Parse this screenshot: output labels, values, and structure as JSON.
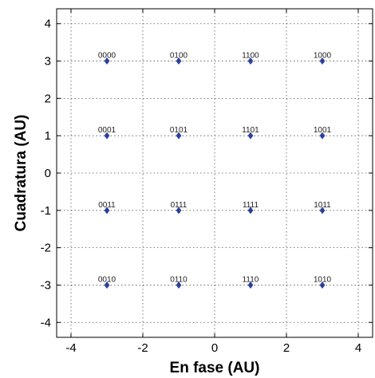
{
  "chart_data": {
    "type": "scatter",
    "xlabel": "En fase (AU)",
    "ylabel": "Cuadratura (AU)",
    "xlim": [
      -4.4,
      4.4
    ],
    "ylim": [
      -4.4,
      4.4
    ],
    "xticks": [
      -4,
      -2,
      0,
      2,
      4
    ],
    "yticks": [
      -4,
      -3,
      -2,
      -1,
      0,
      1,
      2,
      3,
      4
    ],
    "grid": true,
    "marker_color": "#2b3fa0",
    "points": [
      {
        "x": -3,
        "y": 3,
        "label": "0000"
      },
      {
        "x": -1,
        "y": 3,
        "label": "0100"
      },
      {
        "x": 1,
        "y": 3,
        "label": "1100"
      },
      {
        "x": 3,
        "y": 3,
        "label": "1000"
      },
      {
        "x": -3,
        "y": 1,
        "label": "0001"
      },
      {
        "x": -1,
        "y": 1,
        "label": "0101"
      },
      {
        "x": 1,
        "y": 1,
        "label": "1101"
      },
      {
        "x": 3,
        "y": 1,
        "label": "1001"
      },
      {
        "x": -3,
        "y": -1,
        "label": "0011"
      },
      {
        "x": -1,
        "y": -1,
        "label": "0111"
      },
      {
        "x": 1,
        "y": -1,
        "label": "1111"
      },
      {
        "x": 3,
        "y": -1,
        "label": "1011"
      },
      {
        "x": -3,
        "y": -3,
        "label": "0010"
      },
      {
        "x": -1,
        "y": -3,
        "label": "0110"
      },
      {
        "x": 1,
        "y": -3,
        "label": "1110"
      },
      {
        "x": 3,
        "y": -3,
        "label": "1010"
      }
    ]
  }
}
